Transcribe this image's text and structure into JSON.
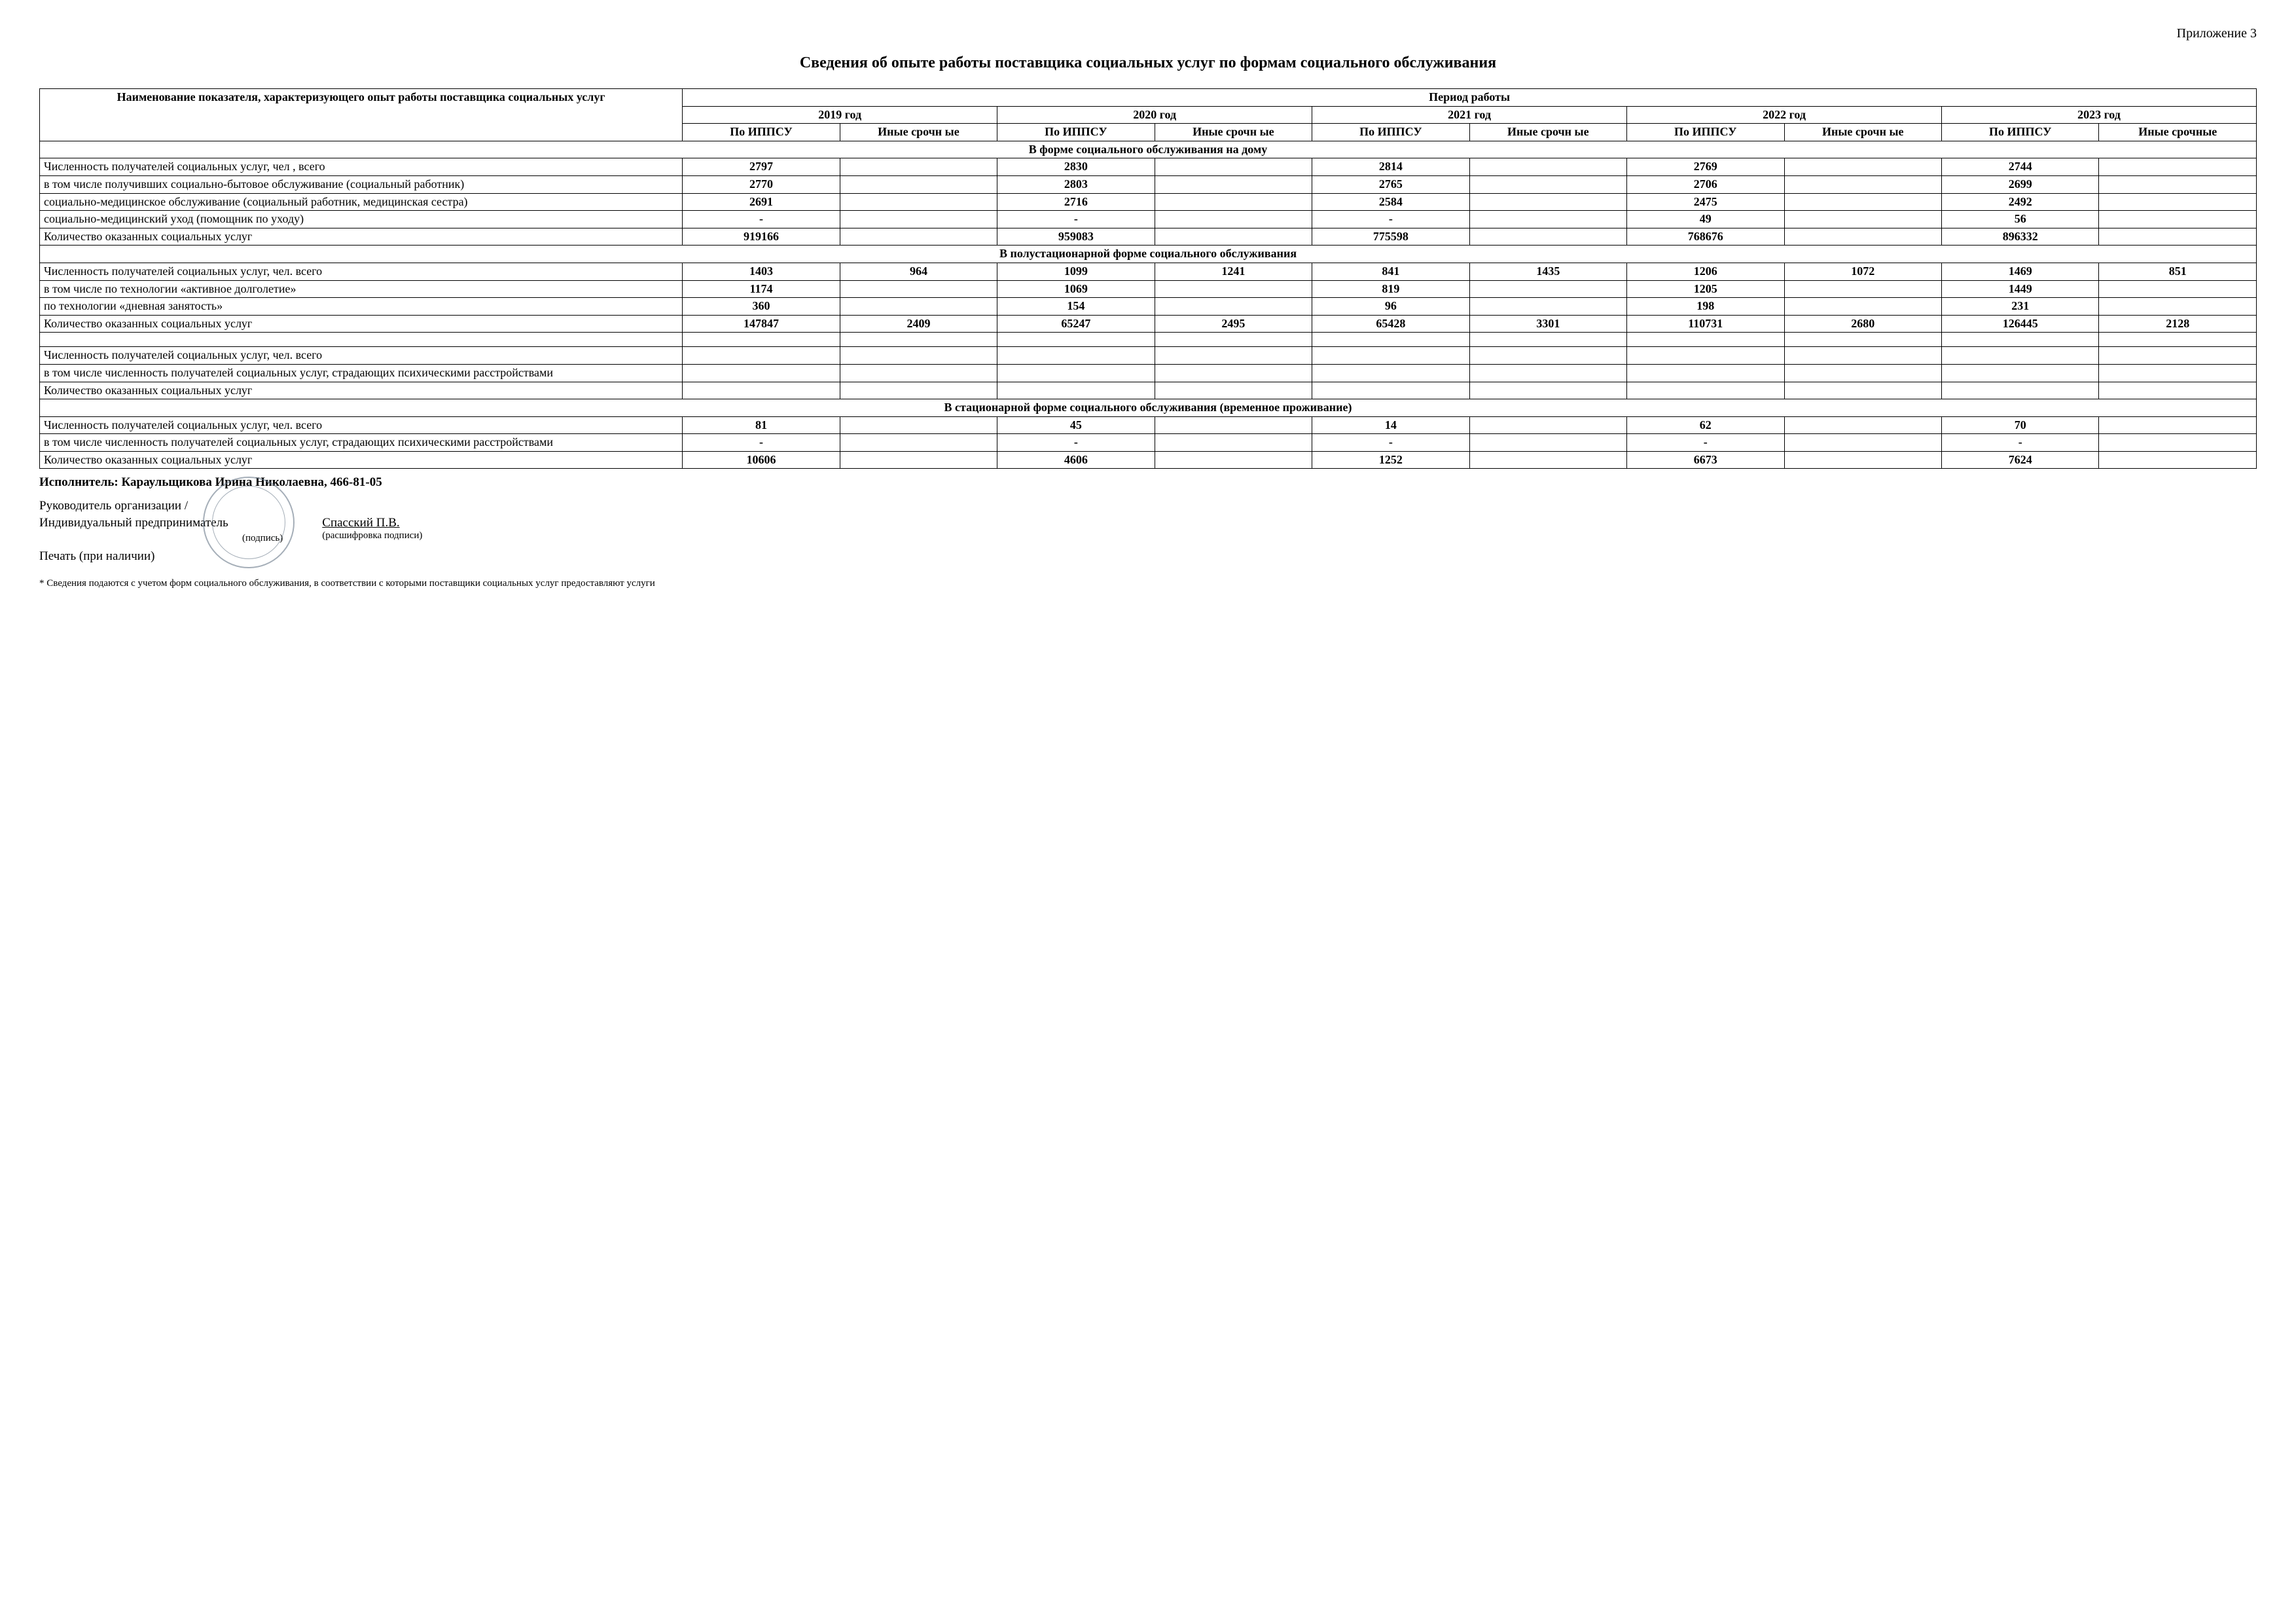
{
  "appendix": "Приложение 3",
  "title": "Сведения об опыте работы поставщика социальных услуг по формам социального обслуживания",
  "header": {
    "indicator": "Наименование показателя, характеризующего опыт работы поставщика социальных услуг",
    "period": "Период работы",
    "years": [
      "2019 год",
      "2020 год",
      "2021 год",
      "2022 год",
      "2023 год"
    ],
    "sub_ippsu": "По ИППСУ",
    "sub_other": "Иные срочн ые",
    "sub_other_last": "Иные срочные"
  },
  "sections": [
    {
      "heading": "В форме социального обслуживания на дому",
      "rows": [
        {
          "label": "Численность получателей социальных услуг, чел , всего",
          "cells": [
            "2797",
            "",
            "2830",
            "",
            "2814",
            "",
            "2769",
            "",
            "2744",
            ""
          ]
        },
        {
          "label": "в том числе получивших\nсоциально-бытовое обслуживание (социальный работник)",
          "cells": [
            "2770",
            "",
            "2803",
            "",
            "2765",
            "",
            "2706",
            "",
            "2699",
            ""
          ]
        },
        {
          "label": "социально-медицинское обслуживание (социальный работник, медицинская сестра)",
          "cells": [
            "2691",
            "",
            "2716",
            "",
            "2584",
            "",
            "2475",
            "",
            "2492",
            ""
          ]
        },
        {
          "label": "социально-медицинский уход (помощник по уходу)",
          "cells": [
            "-",
            "",
            "-",
            "",
            "-",
            "",
            "49",
            "",
            "56",
            ""
          ]
        },
        {
          "label": "Количество оказанных социальных услуг",
          "cells": [
            "919166",
            "",
            "959083",
            "",
            "775598",
            "",
            "768676",
            "",
            "896332",
            ""
          ]
        }
      ]
    },
    {
      "heading": "В полустационарной форме социального обслуживания",
      "rows": [
        {
          "label": "Численность получателей социальных услуг, чел. всего",
          "cells": [
            "1403",
            "964",
            "1099",
            "1241",
            "841",
            "1435",
            "1206",
            "1072",
            "1469",
            "851"
          ]
        },
        {
          "label": "в том числе по технологии «активное долголетие»",
          "cells": [
            "1174",
            "",
            "1069",
            "",
            "819",
            "",
            "1205",
            "",
            "1449",
            ""
          ]
        },
        {
          "label": "по технологии «дневная занятость»",
          "cells": [
            "360",
            "",
            "154",
            "",
            "96",
            "",
            "198",
            "",
            "231",
            ""
          ]
        },
        {
          "label": "Количество оказанных социальных услуг",
          "cells": [
            "147847",
            "2409",
            "65247",
            "2495",
            "65428",
            "3301",
            "110731",
            "2680",
            "126445",
            "2128"
          ]
        }
      ]
    },
    {
      "heading": "",
      "empty_first": true,
      "rows": [
        {
          "label": "Численность получателей социальных услуг, чел. всего",
          "cells": [
            "",
            "",
            "",
            "",
            "",
            "",
            "",
            "",
            "",
            ""
          ]
        },
        {
          "label": "в том числе численность получателей социальных услуг, страдающих психическими расстройствами",
          "cells": [
            "",
            "",
            "",
            "",
            "",
            "",
            "",
            "",
            "",
            ""
          ]
        },
        {
          "label": "Количество оказанных социальных услуг",
          "cells": [
            "",
            "",
            "",
            "",
            "",
            "",
            "",
            "",
            "",
            ""
          ]
        }
      ]
    },
    {
      "heading": "В стационарной форме социального обслуживания (временное проживание)",
      "rows": [
        {
          "label": "Численность получателей социальных услуг, чел. всего",
          "cells": [
            "81",
            "",
            "45",
            "",
            "14",
            "",
            "62",
            "",
            "70",
            ""
          ]
        },
        {
          "label": "в том числе численность получателей социальных услуг, страдающих психическими расстройствами",
          "cells": [
            "-",
            "",
            "-",
            "",
            "-",
            "",
            "-",
            "",
            "-",
            ""
          ]
        },
        {
          "label": "Количество оказанных социальных услуг",
          "cells": [
            "10606",
            "",
            "4606",
            "",
            "1252",
            "",
            "6673",
            "",
            "7624",
            ""
          ]
        }
      ]
    }
  ],
  "footer": {
    "performer": "Исполнитель: Караульщикова Ирина Николаевна, 466-81-05",
    "head_line1": "Руководитель организации /",
    "head_line2": "Индивидуальный предприниматель",
    "podpis": "(подпись)",
    "sig_name": "Спасский П.В.",
    "sig_caption": "(расшифровка подписи)",
    "seal": "Печать (при наличии)",
    "footnote": "* Сведения подаются с учетом форм социального обслуживания, в соответствии с которыми поставщики социальных услуг предоставляют услуги"
  },
  "style": {
    "text_color": "#000000",
    "background": "#ffffff",
    "border_color": "#000000",
    "stamp_color": "#6a7a8a",
    "title_fontsize": 24,
    "body_fontsize": 18
  }
}
